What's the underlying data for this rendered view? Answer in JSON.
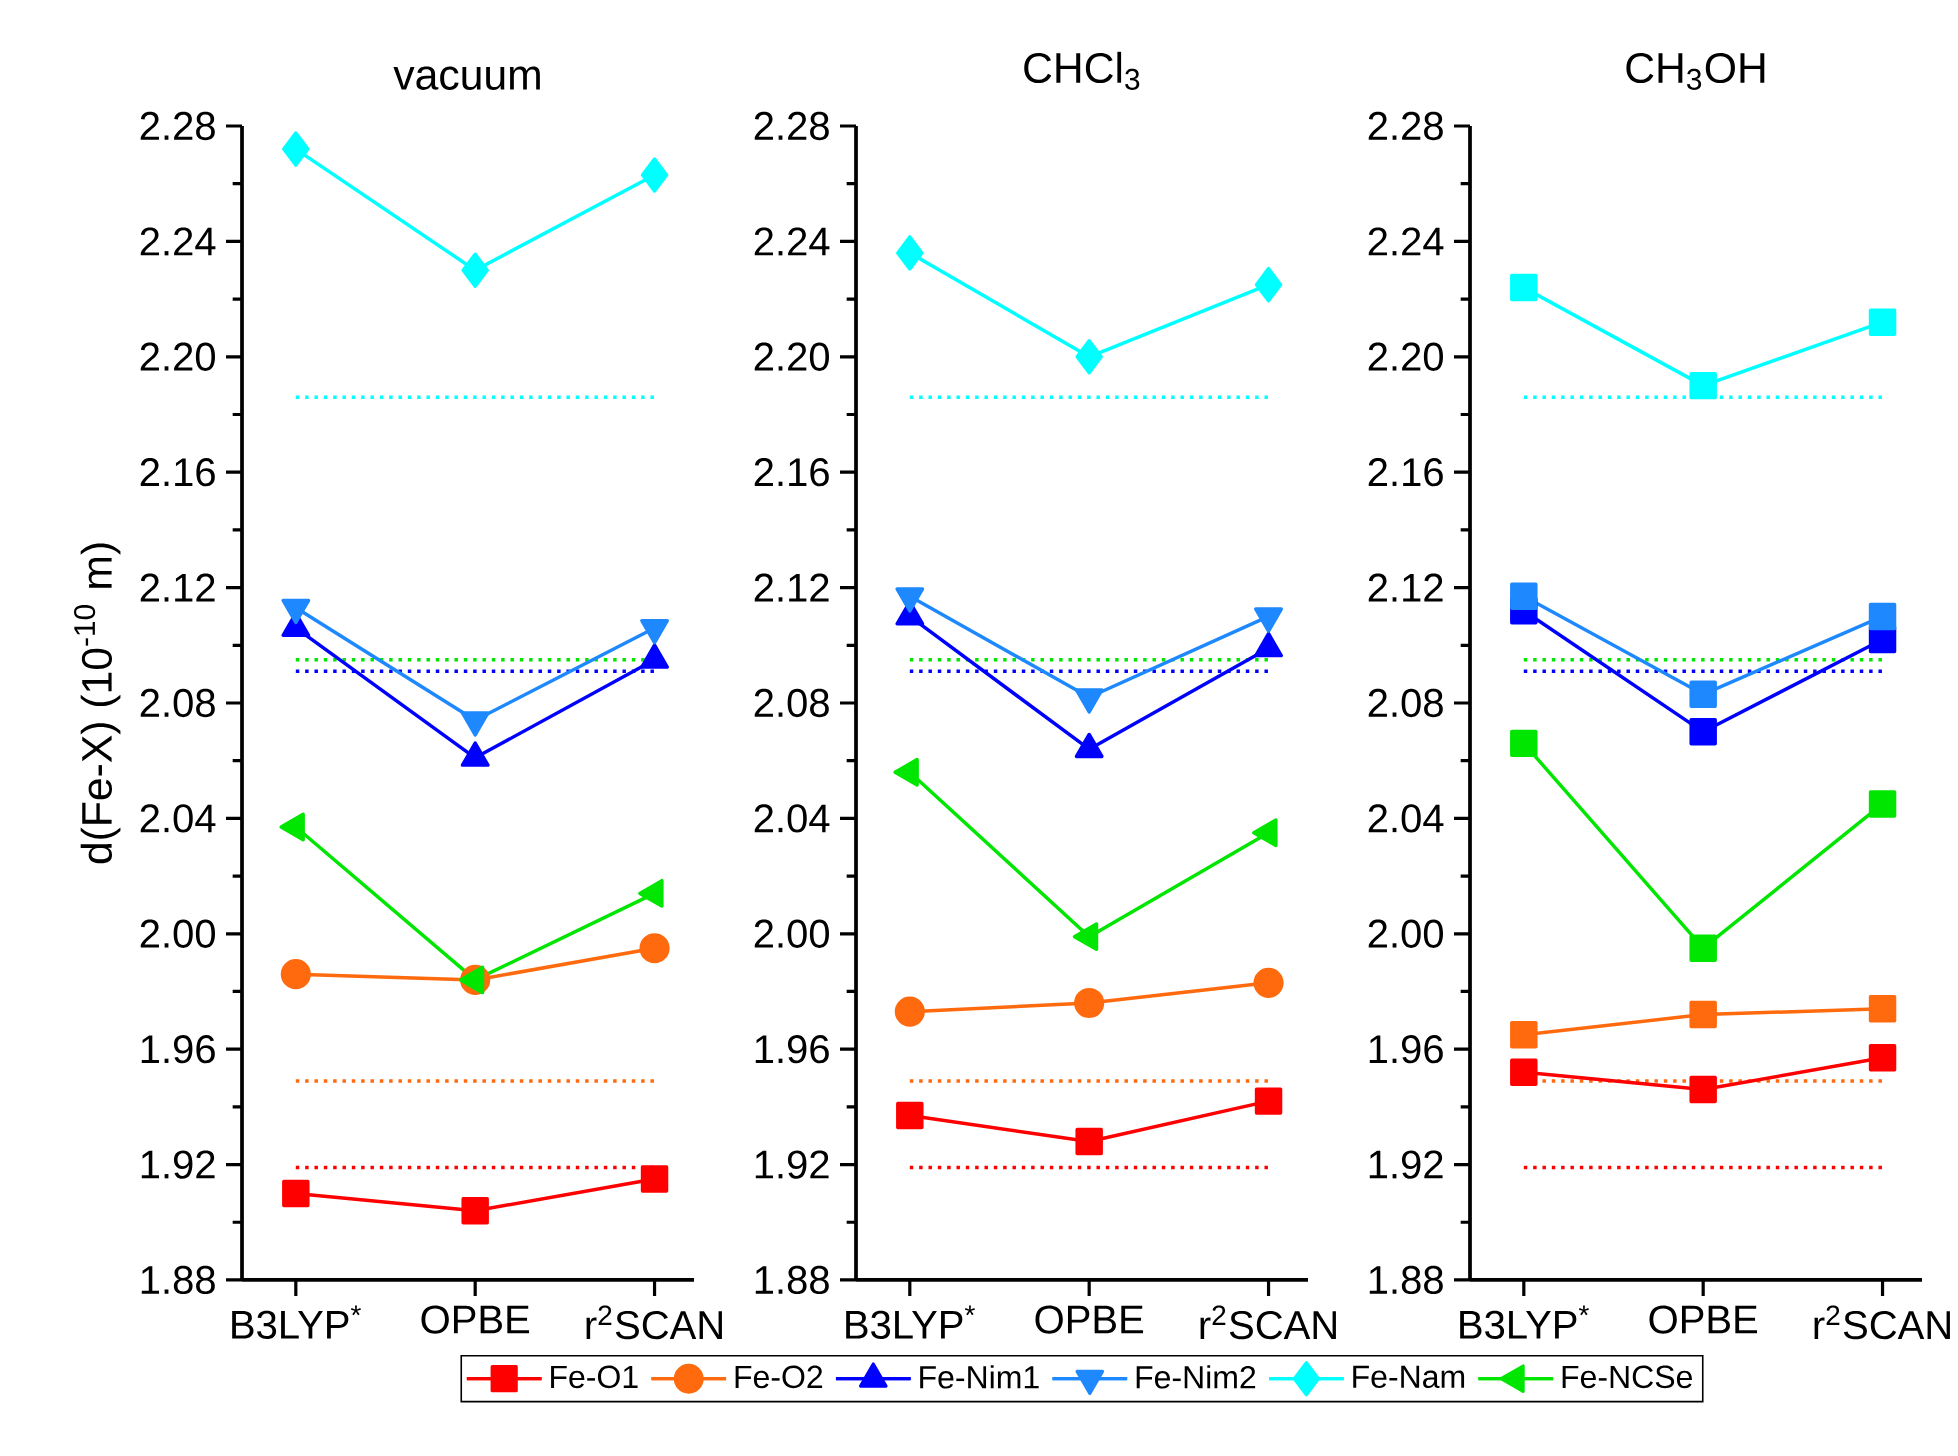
{
  "chart_data": [
    {
      "type": "line",
      "title": "vacuum",
      "ylabel": "d(Fe-X) (10$^{-10}$ m)",
      "categories": [
        "B3LYP$^{*}$",
        "OPBE",
        "r$^{2}$SCAN"
      ],
      "series": [
        {
          "color": "#ff0000",
          "marker": "square",
          "values": [
            1.91,
            1.904,
            1.915
          ]
        },
        {
          "color": "#ff6a0e",
          "marker": "circle",
          "values": [
            1.986,
            1.984,
            1.995
          ]
        },
        {
          "color": "#0000ff",
          "marker": "triangle",
          "values": [
            2.106,
            2.061,
            2.095
          ]
        },
        {
          "color": "#1e88ff",
          "marker": "triangle-down",
          "values": [
            2.113,
            2.074,
            2.106
          ]
        },
        {
          "color": "#00ffff",
          "marker": "diamond",
          "values": [
            2.272,
            2.23,
            2.263
          ]
        },
        {
          "color": "#00e600",
          "marker": "triangle-left",
          "values": [
            2.037,
            1.984,
            2.014
          ]
        }
      ],
      "ref_lines": [
        {
          "axis": "y",
          "value": 2.186,
          "color": "#00ffff",
          "line_style": "dotted"
        },
        {
          "axis": "y",
          "value": 2.095,
          "color": "#00e600",
          "line_style": "dotted"
        },
        {
          "axis": "y",
          "value": 2.091,
          "color": "#0000ff",
          "line_style": "dotted"
        },
        {
          "axis": "y",
          "value": 1.949,
          "color": "#ff6a0e",
          "line_style": "dotted"
        },
        {
          "axis": "y",
          "value": 1.919,
          "color": "#ff0000",
          "line_style": "dotted"
        }
      ],
      "ylim": [
        1.88,
        2.28
      ],
      "yticks": [
        {
          "value": 1.88,
          "label": "1.88"
        },
        {
          "value": 1.92,
          "label": "1.92"
        },
        {
          "value": 1.96,
          "label": "1.96"
        },
        {
          "value": 2.0,
          "label": "2.00"
        },
        {
          "value": 2.04,
          "label": "2.04"
        },
        {
          "value": 2.08,
          "label": "2.08"
        },
        {
          "value": 2.12,
          "label": "2.12"
        },
        {
          "value": 2.16,
          "label": "2.16"
        },
        {
          "value": 2.2,
          "label": "2.20"
        },
        {
          "value": 2.24,
          "label": "2.24"
        },
        {
          "value": 2.28,
          "label": "2.28"
        }
      ],
      "grid": false
    },
    {
      "type": "line",
      "title": "CHCl$_{3}$",
      "categories": [
        "B3LYP$^{*}$",
        "OPBE",
        "r$^{2}$SCAN"
      ],
      "series": [
        {
          "name": "Fe-O1",
          "color": "#ff0000",
          "marker": "square",
          "values": [
            1.937,
            1.928,
            1.942
          ]
        },
        {
          "name": "Fe-O2",
          "color": "#ff6a0e",
          "marker": "circle",
          "values": [
            1.973,
            1.976,
            1.983
          ]
        },
        {
          "name": "Fe-Nim1",
          "color": "#0000ff",
          "marker": "triangle",
          "values": [
            2.11,
            2.064,
            2.099
          ]
        },
        {
          "name": "Fe-Nim2",
          "color": "#1e88ff",
          "marker": "triangle-down",
          "values": [
            2.117,
            2.082,
            2.11
          ]
        },
        {
          "name": "Fe-Nam",
          "color": "#00ffff",
          "marker": "diamond",
          "values": [
            2.236,
            2.2,
            2.225
          ]
        },
        {
          "name": "Fe-NCSe",
          "color": "#00e600",
          "marker": "triangle-left",
          "values": [
            2.056,
            1.999,
            2.035
          ]
        }
      ],
      "ref_lines": [
        {
          "axis": "y",
          "value": 2.186,
          "color": "#00ffff",
          "line_style": "dotted"
        },
        {
          "axis": "y",
          "value": 2.095,
          "color": "#00e600",
          "line_style": "dotted"
        },
        {
          "axis": "y",
          "value": 2.091,
          "color": "#0000ff",
          "line_style": "dotted"
        },
        {
          "axis": "y",
          "value": 1.949,
          "color": "#ff6a0e",
          "line_style": "dotted"
        },
        {
          "axis": "y",
          "value": 1.919,
          "color": "#ff0000",
          "line_style": "dotted"
        }
      ],
      "ylim": [
        1.88,
        2.28
      ],
      "yticks": [
        {
          "value": 1.88,
          "label": "1.88"
        },
        {
          "value": 1.92,
          "label": "1.92"
        },
        {
          "value": 1.96,
          "label": "1.96"
        },
        {
          "value": 2.0,
          "label": "2.00"
        },
        {
          "value": 2.04,
          "label": "2.04"
        },
        {
          "value": 2.08,
          "label": "2.08"
        },
        {
          "value": 2.12,
          "label": "2.12"
        },
        {
          "value": 2.16,
          "label": "2.16"
        },
        {
          "value": 2.2,
          "label": "2.20"
        },
        {
          "value": 2.24,
          "label": "2.24"
        },
        {
          "value": 2.28,
          "label": "2.28"
        }
      ],
      "grid": false,
      "legend": "bottom"
    },
    {
      "type": "line",
      "title": "CH$_{3}$OH",
      "categories": [
        "B3LYP$^{*}$",
        "OPBE",
        "r$^{2}$SCAN"
      ],
      "series": [
        {
          "color": "#ff0000",
          "values": [
            1.952,
            1.946,
            1.957
          ]
        },
        {
          "color": "#ff6a0e",
          "values": [
            1.965,
            1.972,
            1.974
          ]
        },
        {
          "color": "#0000ff",
          "values": [
            2.112,
            2.07,
            2.102
          ]
        },
        {
          "color": "#1e88ff",
          "values": [
            2.117,
            2.083,
            2.11
          ]
        },
        {
          "color": "#00ffff",
          "values": [
            2.224,
            2.19,
            2.212
          ]
        },
        {
          "color": "#00e600",
          "values": [
            2.066,
            1.995,
            2.045
          ]
        }
      ],
      "marker": "square",
      "ref_lines": [
        {
          "axis": "y",
          "value": 2.186,
          "color": "#00ffff",
          "line_style": "dotted"
        },
        {
          "axis": "y",
          "value": 2.095,
          "color": "#00e600",
          "line_style": "dotted"
        },
        {
          "axis": "y",
          "value": 2.091,
          "color": "#0000ff",
          "line_style": "dotted"
        },
        {
          "axis": "y",
          "value": 1.949,
          "color": "#ff6a0e",
          "line_style": "dotted"
        },
        {
          "axis": "y",
          "value": 1.919,
          "color": "#ff0000",
          "line_style": "dotted"
        }
      ],
      "ylim": [
        1.88,
        2.28
      ],
      "yticks": [
        {
          "value": 1.88,
          "label": "1.88"
        },
        {
          "value": 1.92,
          "label": "1.92"
        },
        {
          "value": 1.96,
          "label": "1.96"
        },
        {
          "value": 2.0,
          "label": "2.00"
        },
        {
          "value": 2.04,
          "label": "2.04"
        },
        {
          "value": 2.08,
          "label": "2.08"
        },
        {
          "value": 2.12,
          "label": "2.12"
        },
        {
          "value": 2.16,
          "label": "2.16"
        },
        {
          "value": 2.2,
          "label": "2.20"
        },
        {
          "value": 2.24,
          "label": "2.24"
        },
        {
          "value": 2.28,
          "label": "2.28"
        }
      ],
      "grid": false
    }
  ]
}
